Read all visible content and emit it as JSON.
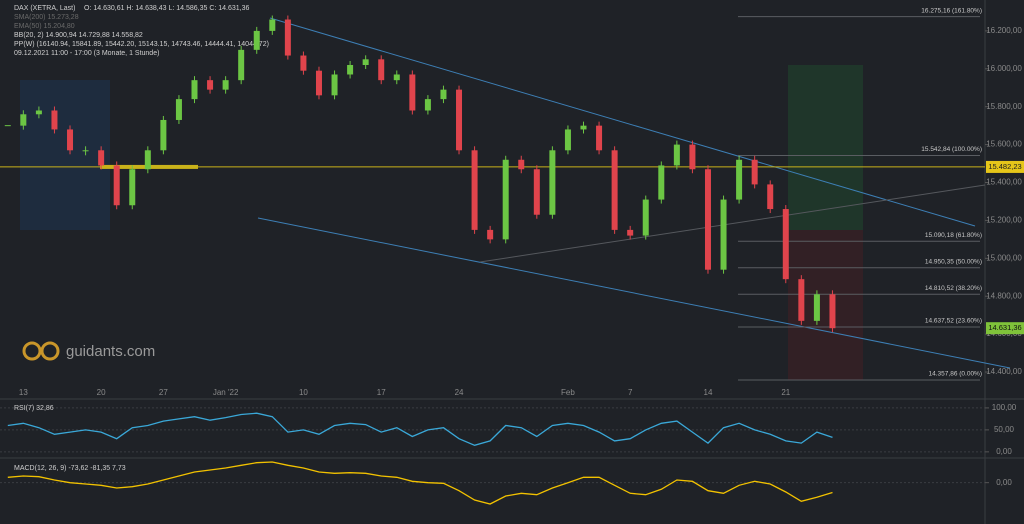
{
  "chart_data": [
    {
      "type": "candlestick",
      "title": "DAX (XETRA, Last)",
      "ohlc": "O: 14.630,61  H: 14.638,43  L: 14.586,35  C: 14.631,36",
      "indicators": [
        "SMA(200)  15.273,28",
        "EMA(50)  15.204,80",
        "BB(20, 2)  14.900,94  14.729,88  14.558,82",
        "PP(W)  (16140.94, 15841.89, 15442.20, 15143.15, 14743.46, 14444.41, 14044.72)",
        "09.12.2021 11:00 - 17:00  (3 Monate, 1 Stunde)"
      ],
      "logo": "guidants.com",
      "categories": [
        null,
        "13",
        null,
        null,
        null,
        null,
        "20",
        null,
        null,
        null,
        "27",
        null,
        null,
        null,
        "Jan '22",
        null,
        null,
        null,
        null,
        "10",
        null,
        null,
        null,
        null,
        "17",
        null,
        null,
        null,
        null,
        "24",
        null,
        null,
        null,
        null,
        null,
        null,
        "Feb",
        null,
        null,
        null,
        "7",
        null,
        null,
        null,
        null,
        "14",
        null,
        null,
        null,
        null,
        "21",
        null,
        null,
        null
      ],
      "values": [
        15700,
        15760,
        15780,
        15680,
        15570,
        15570,
        15490,
        15280,
        15470,
        15570,
        15730,
        15840,
        15940,
        15890,
        15940,
        16100,
        16200,
        16260,
        16070,
        15990,
        15860,
        15970,
        16020,
        16050,
        15940,
        15970,
        15780,
        15840,
        15890,
        15570,
        15150,
        15100,
        15520,
        15470,
        15230,
        15570,
        15680,
        15700,
        15570,
        15150,
        15120,
        15310,
        15490,
        15600,
        15470,
        14940,
        15310,
        15520,
        15390,
        15260,
        14890,
        14670,
        14810,
        14631.36
      ],
      "up_color": "#6cc644",
      "down_color": "#e0444c",
      "ylim": [
        14263,
        16363
      ],
      "yticks": [
        {
          "value": 14400,
          "label": "14.400,00"
        },
        {
          "value": 14600,
          "label": "14.600,00"
        },
        {
          "value": 14800,
          "label": "14.800,00"
        },
        {
          "value": 15000,
          "label": "15.000,00"
        },
        {
          "value": 15200,
          "label": "15.200,00"
        },
        {
          "value": 15400,
          "label": "15.400,00"
        },
        {
          "value": 15600,
          "label": "15.600,00"
        },
        {
          "value": 15800,
          "label": "15.800,00"
        },
        {
          "value": 16000,
          "label": "16.000,00"
        },
        {
          "value": 16200,
          "label": "16.200,00"
        }
      ],
      "levels": [
        {
          "value": 16275.16,
          "label": "16.275,16 (161.80%)"
        },
        {
          "value": 15542.84,
          "label": "15.542,84 (100.00%)"
        },
        {
          "value": 15090.18,
          "label": "15.090,18 (61.80%)"
        },
        {
          "value": 14950.35,
          "label": "14.950,35 (50.00%)"
        },
        {
          "value": 14810.52,
          "label": "14.810,52 (38.20%)"
        },
        {
          "value": 14637.52,
          "label": "14.637,52 (23.60%)"
        },
        {
          "value": 14357.86,
          "label": "14.357,86 (0.00%)"
        }
      ],
      "pivot": {
        "value": 15482.23,
        "label": "15.482,23"
      },
      "last": {
        "value": 14631.36,
        "label": "14.631,36"
      }
    },
    {
      "type": "line",
      "title": "RSI(7)  32,86",
      "color": "#3aa8d8",
      "values": [
        60,
        65,
        55,
        40,
        45,
        50,
        45,
        30,
        55,
        60,
        70,
        75,
        80,
        72,
        78,
        85,
        88,
        80,
        45,
        50,
        40,
        60,
        65,
        62,
        45,
        55,
        35,
        50,
        55,
        30,
        15,
        25,
        60,
        55,
        35,
        60,
        65,
        60,
        45,
        25,
        30,
        50,
        65,
        70,
        45,
        20,
        55,
        65,
        50,
        40,
        25,
        20,
        45,
        32.86
      ],
      "ylim": [
        -14,
        118
      ],
      "yticks": [
        {
          "value": 100,
          "label": "100,00"
        },
        {
          "value": 50,
          "label": "50,00"
        },
        {
          "value": 0,
          "label": "0,00"
        }
      ]
    },
    {
      "type": "line",
      "title": "MACD(12, 26, 9)  -73,62  -81,35  7,73",
      "color": "#f2c200",
      "values": [
        40,
        50,
        45,
        20,
        0,
        -10,
        -20,
        -40,
        -30,
        -10,
        20,
        50,
        80,
        95,
        110,
        130,
        150,
        155,
        130,
        110,
        80,
        70,
        75,
        70,
        50,
        40,
        10,
        0,
        -5,
        -60,
        -130,
        -160,
        -100,
        -80,
        -90,
        -40,
        0,
        40,
        40,
        -20,
        -80,
        -90,
        -50,
        20,
        10,
        -60,
        -80,
        -20,
        10,
        -10,
        -70,
        -140,
        -110,
        -73.62
      ],
      "ylim": [
        -250,
        170
      ],
      "yticks": [
        {
          "value": 0,
          "label": "0,00"
        }
      ]
    }
  ]
}
